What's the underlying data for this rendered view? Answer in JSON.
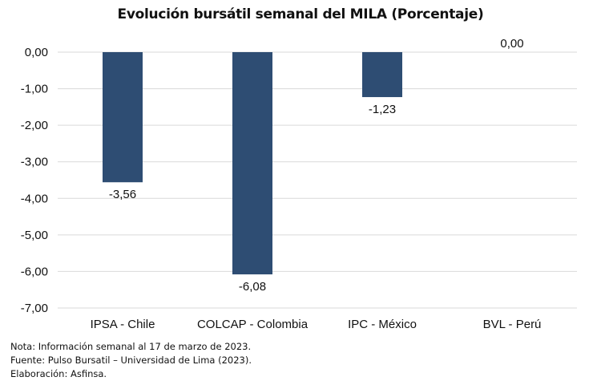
{
  "chart_data": {
    "type": "bar",
    "title": "Evolución bursátil semanal del MILA (Porcentaje)",
    "categories": [
      "IPSA - Chile",
      "COLCAP - Colombia",
      "IPC - México",
      "BVL - Perú"
    ],
    "values": [
      -3.56,
      -6.08,
      -1.23,
      0.0
    ],
    "value_labels": [
      "-3,56",
      "-6,08",
      "-1,23",
      "0,00"
    ],
    "xlabel": "",
    "ylabel": "",
    "ylim": [
      -7,
      0
    ],
    "yticks": [
      0,
      -1,
      -2,
      -3,
      -4,
      -5,
      -6,
      -7
    ],
    "ytick_labels": [
      "0,00",
      "-1,00",
      "-2,00",
      "-3,00",
      "-4,00",
      "-5,00",
      "-6,00",
      "-7,00"
    ],
    "grid": true,
    "legend": "none",
    "bar_color": "#2e4d73",
    "grid_color": "#d9d9d9"
  },
  "notes": [
    "Nota: Información semanal al 17 de marzo de 2023.",
    "Fuente: Pulso Bursatil – Universidad de Lima (2023).",
    "Elaboración: Asfinsa."
  ]
}
